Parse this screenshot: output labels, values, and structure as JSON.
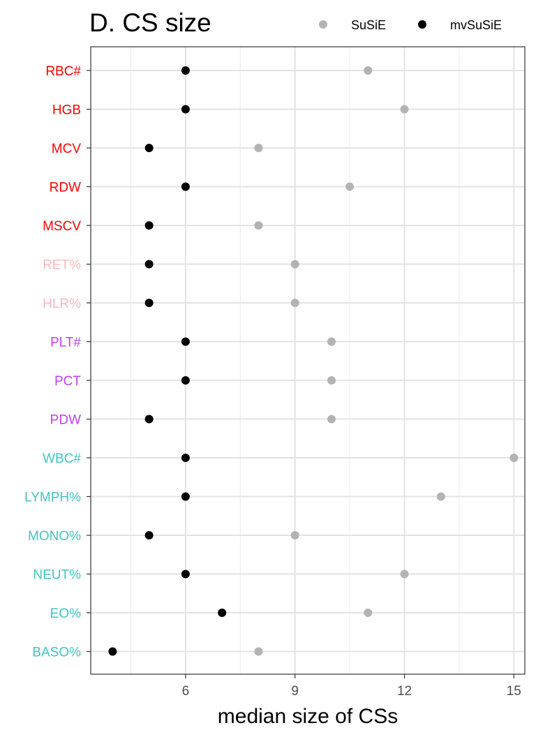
{
  "chart_data": {
    "type": "scatter",
    "title": "D. CS size",
    "xlabel": "median size of CSs",
    "ylabel": "",
    "xlim": [
      3.4,
      15.3
    ],
    "xticks": [
      6,
      9,
      12,
      15
    ],
    "grid": true,
    "legend_position": "top-right",
    "categories": [
      {
        "label": "RBC#",
        "color": "#ff0000"
      },
      {
        "label": "HGB",
        "color": "#ff0000"
      },
      {
        "label": "MCV",
        "color": "#ff0000"
      },
      {
        "label": "RDW",
        "color": "#ff0000"
      },
      {
        "label": "MSCV",
        "color": "#ff0000"
      },
      {
        "label": "RET%",
        "color": "#ffb6c1"
      },
      {
        "label": "HLR%",
        "color": "#ffb6c1"
      },
      {
        "label": "PLT#",
        "color": "#bf3eff"
      },
      {
        "label": "PCT",
        "color": "#bf3eff"
      },
      {
        "label": "PDW",
        "color": "#bf3eff"
      },
      {
        "label": "WBC#",
        "color": "#40c4c4"
      },
      {
        "label": "LYMPH%",
        "color": "#40c4c4"
      },
      {
        "label": "MONO%",
        "color": "#40c4c4"
      },
      {
        "label": "NEUT%",
        "color": "#40c4c4"
      },
      {
        "label": "EO%",
        "color": "#40c4c4"
      },
      {
        "label": "BASO%",
        "color": "#40c4c4"
      }
    ],
    "series": [
      {
        "name": "SuSiE",
        "color": "#b3b3b3",
        "values": [
          11,
          12,
          8,
          10.5,
          8,
          9,
          9,
          10,
          10,
          10,
          15,
          13,
          9,
          12,
          11,
          8
        ]
      },
      {
        "name": "mvSuSiE",
        "color": "#000000",
        "values": [
          6,
          6,
          5,
          6,
          5,
          5,
          5,
          6,
          6,
          5,
          6,
          6,
          5,
          6,
          7,
          4
        ]
      }
    ]
  }
}
